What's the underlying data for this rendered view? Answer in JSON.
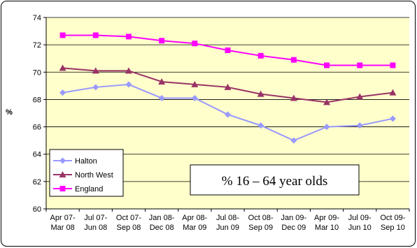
{
  "chart_data": {
    "type": "line",
    "title": "",
    "xlabel": "",
    "ylabel": "%",
    "ylim": [
      60,
      74
    ],
    "yticks": [
      60,
      62,
      64,
      66,
      68,
      70,
      72,
      74
    ],
    "grid": true,
    "legend_position": "bottom-left",
    "categories": [
      [
        "Apr 07-",
        "Mar 08"
      ],
      [
        "Jul 07-",
        "Jun 08"
      ],
      [
        "Oct 07-",
        "Sep 08"
      ],
      [
        "Jan 08-",
        "Dec 08"
      ],
      [
        "Apr 08-",
        "Mar 09"
      ],
      [
        "Jul 08-",
        "Jun 09"
      ],
      [
        "Oct 08-",
        "Sep 09"
      ],
      [
        "Jan 09-",
        "Dec 09"
      ],
      [
        "Apr 09-",
        "Mar 10"
      ],
      [
        "Jul 09-",
        "Jun 10"
      ],
      [
        "Oct 09-",
        "Sep 10"
      ]
    ],
    "series": [
      {
        "name": "Halton",
        "color": "#9999ff",
        "marker": "diamond",
        "values": [
          68.5,
          68.9,
          69.1,
          68.1,
          68.1,
          66.9,
          66.1,
          65.0,
          66.0,
          66.1,
          66.6
        ]
      },
      {
        "name": "North West",
        "color": "#993366",
        "marker": "triangle",
        "values": [
          70.3,
          70.1,
          70.1,
          69.3,
          69.1,
          68.9,
          68.4,
          68.1,
          67.8,
          68.2,
          68.5
        ]
      },
      {
        "name": "England",
        "color": "#ff00ff",
        "marker": "square",
        "values": [
          72.7,
          72.7,
          72.6,
          72.3,
          72.1,
          71.6,
          71.2,
          70.9,
          70.5,
          70.5,
          70.5
        ]
      }
    ],
    "annotation": "% 16 – 64 year olds",
    "colors": {
      "plot_background": "#ffffcc",
      "chart_background": "#ffffff",
      "grid": "#000000"
    }
  }
}
